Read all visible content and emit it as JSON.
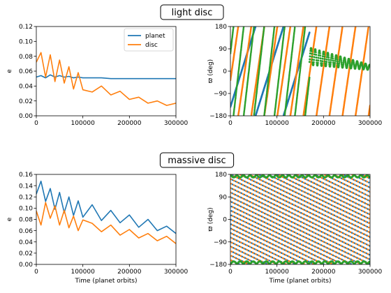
{
  "colors": {
    "planet": "#1f77b4",
    "disc": "#ff7f0e",
    "resonant": "#2ca02c",
    "background": "#ffffff"
  },
  "chart_data": [
    {
      "id": "light-e",
      "type": "line",
      "section_title": "light disc",
      "xlabel": "",
      "ylabel": "e",
      "xlim": [
        0,
        300000
      ],
      "ylim": [
        0.0,
        0.12
      ],
      "xticks": [
        "0",
        "100000",
        "200000",
        "300000"
      ],
      "yticks": [
        "0.00",
        "0.02",
        "0.04",
        "0.06",
        "0.08",
        "0.10",
        "0.12"
      ],
      "legend": {
        "position": "top-right",
        "entries": [
          "planet",
          "disc"
        ]
      },
      "x": [
        0,
        10000,
        20000,
        30000,
        40000,
        50000,
        60000,
        70000,
        80000,
        90000,
        100000,
        120000,
        140000,
        160000,
        180000,
        200000,
        220000,
        240000,
        260000,
        280000,
        300000
      ],
      "series": [
        {
          "name": "planet",
          "color": "#1f77b4",
          "values": [
            0.052,
            0.054,
            0.051,
            0.055,
            0.052,
            0.054,
            0.052,
            0.053,
            0.051,
            0.052,
            0.051,
            0.051,
            0.051,
            0.05,
            0.05,
            0.05,
            0.05,
            0.05,
            0.05,
            0.05,
            0.05
          ]
        },
        {
          "name": "disc",
          "color": "#ff7f0e",
          "values": [
            0.072,
            0.085,
            0.052,
            0.082,
            0.046,
            0.075,
            0.044,
            0.066,
            0.036,
            0.058,
            0.035,
            0.032,
            0.04,
            0.028,
            0.033,
            0.022,
            0.025,
            0.017,
            0.02,
            0.014,
            0.017
          ]
        }
      ]
    },
    {
      "id": "light-w",
      "type": "scatter",
      "xlabel": "",
      "ylabel": "ϖ (deg)",
      "xlim": [
        0,
        300000
      ],
      "ylim": [
        -180,
        180
      ],
      "xticks": [
        "0",
        "100000",
        "200000",
        "300000"
      ],
      "yticks": [
        "180",
        "90",
        "0",
        "−90",
        "−180"
      ],
      "series": [
        {
          "color": "#1f77b4",
          "pattern": "wrap-ramp",
          "x_range": [
            0,
            170000
          ],
          "period": 60000,
          "phase": 0.1,
          "direction": 1
        },
        {
          "color": "#ff7f0e",
          "pattern": "wrap-ramp",
          "x_range": [
            0,
            300000
          ],
          "period": 28000,
          "phase": 0.4,
          "direction": 1
        },
        {
          "color": "#2ca02c",
          "pattern": "wrap-ramp",
          "x_range": [
            0,
            170000
          ],
          "period": 22000,
          "phase": 0.7,
          "direction": 1
        },
        {
          "color": "#2ca02c",
          "pattern": "oscillation",
          "x_range": [
            170000,
            300000
          ],
          "center_start": 60,
          "center_end": 15,
          "amp_start": 35,
          "amp_end": 10,
          "period": 9000
        }
      ]
    },
    {
      "id": "massive-e",
      "type": "line",
      "section_title": "massive disc",
      "xlabel": "Time (planet orbits)",
      "ylabel": "e",
      "xlim": [
        0,
        300000
      ],
      "ylim": [
        0.0,
        0.16
      ],
      "xticks": [
        "0",
        "100000",
        "200000",
        "300000"
      ],
      "yticks": [
        "0.00",
        "0.02",
        "0.04",
        "0.06",
        "0.08",
        "0.10",
        "0.12",
        "0.14",
        "0.16"
      ],
      "x": [
        0,
        10000,
        20000,
        30000,
        40000,
        50000,
        60000,
        70000,
        80000,
        90000,
        100000,
        120000,
        140000,
        160000,
        180000,
        200000,
        220000,
        240000,
        260000,
        280000,
        300000
      ],
      "series": [
        {
          "name": "planet",
          "color": "#1f77b4",
          "values": [
            0.125,
            0.148,
            0.112,
            0.135,
            0.098,
            0.128,
            0.092,
            0.12,
            0.087,
            0.113,
            0.084,
            0.106,
            0.078,
            0.096,
            0.074,
            0.088,
            0.066,
            0.08,
            0.06,
            0.068,
            0.055
          ]
        },
        {
          "name": "disc",
          "color": "#ff7f0e",
          "values": [
            0.095,
            0.07,
            0.11,
            0.082,
            0.104,
            0.07,
            0.096,
            0.065,
            0.086,
            0.06,
            0.079,
            0.073,
            0.058,
            0.07,
            0.052,
            0.062,
            0.047,
            0.055,
            0.042,
            0.05,
            0.037
          ]
        }
      ]
    },
    {
      "id": "massive-w",
      "type": "scatter",
      "xlabel": "Time (planet orbits)",
      "ylabel": "ϖ (deg)",
      "xlim": [
        0,
        300000
      ],
      "ylim": [
        -180,
        180
      ],
      "xticks": [
        "0",
        "100000",
        "200000",
        "300000"
      ],
      "yticks": [
        "180",
        "90",
        "0",
        "−90",
        "−180"
      ],
      "series": [
        {
          "color": "#1f77b4",
          "pattern": "wrap-ramp",
          "x_range": [
            0,
            300000
          ],
          "period": 6500,
          "phase": 0.2,
          "direction": 1
        },
        {
          "color": "#ff7f0e",
          "pattern": "wrap-ramp",
          "x_range": [
            0,
            300000
          ],
          "period": 6500,
          "phase": 0.7,
          "direction": 1
        },
        {
          "color": "#2ca02c",
          "pattern": "edge-band",
          "x_range": [
            0,
            300000
          ],
          "period": 14000
        }
      ]
    }
  ]
}
